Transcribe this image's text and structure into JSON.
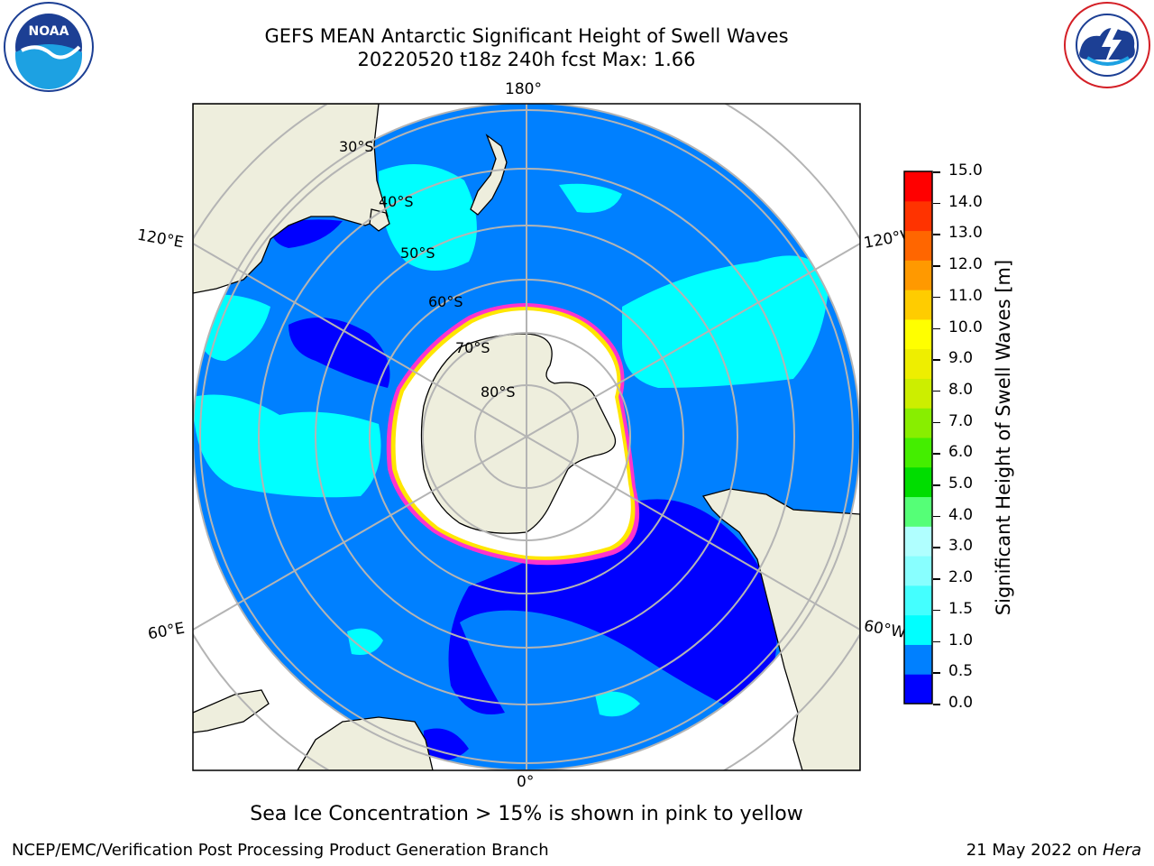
{
  "title": {
    "line1": "GEFS MEAN Antarctic Significant Height of Swell Waves",
    "line2": "20220520 t18z 240h fcst   Max: 1.66"
  },
  "map": {
    "projection": "south-polar-stereographic",
    "longitude_labels": {
      "top": "180°",
      "bottom": "0°",
      "left_upper": "120°E",
      "left_lower": "60°E",
      "right_upper": "120°W",
      "right_lower": "60°W"
    },
    "latitude_labels": [
      "30°S",
      "40°S",
      "50°S",
      "60°S",
      "70°S",
      "80°S"
    ],
    "colors": {
      "ocean": "#0080ff",
      "land": "#eeeedd",
      "sea_ice": "#ffffff",
      "grid": "#b4b4b4",
      "ice_edge_pink": "#ff33cc",
      "ice_edge_yellow": "#ffe600"
    }
  },
  "colorbar": {
    "label": "Significant Height of Swell Waves [m]",
    "ticks": [
      "15.0",
      "14.0",
      "13.0",
      "12.0",
      "11.0",
      "10.0",
      "9.0",
      "8.0",
      "7.0",
      "6.0",
      "5.0",
      "4.0",
      "3.0",
      "2.0",
      "1.5",
      "1.0",
      "0.5",
      "0.0"
    ],
    "colors": [
      "#0000ff",
      "#0080ff",
      "#00ffff",
      "#44ffff",
      "#88ffff",
      "#b0ffff",
      "#55ff77",
      "#00dd00",
      "#44ee00",
      "#88ee00",
      "#ccee00",
      "#eeee00",
      "#ffff00",
      "#ffcc00",
      "#ff9900",
      "#ff6600",
      "#ff3300",
      "#ff0000"
    ]
  },
  "note": "Sea Ice Concentration > 15% is shown in pink to yellow",
  "footer": {
    "left": "NCEP/EMC/Verification Post Processing Product Generation Branch",
    "right_date": "21 May 2022 on",
    "right_host": "Hera"
  },
  "logos": {
    "noaa": {
      "text": "NOAA",
      "icon": "noaa-logo"
    },
    "nws": {
      "text": "NATIONAL WEATHER SERVICE",
      "icon": "nws-logo"
    }
  }
}
